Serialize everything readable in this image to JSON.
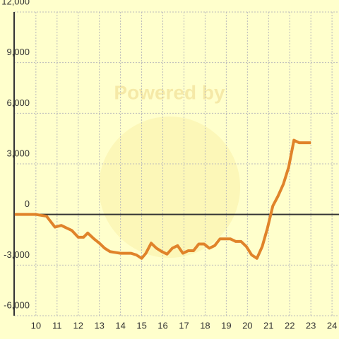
{
  "chart_data": {
    "type": "line",
    "watermark": "Powered by",
    "x": [
      9.0,
      10,
      10.5,
      10.9,
      11.2,
      11.45,
      11.7,
      12.0,
      12.25,
      12.45,
      12.75,
      13.0,
      13.25,
      13.5,
      13.75,
      14.0,
      14.25,
      14.5,
      14.75,
      15.0,
      15.2,
      15.45,
      15.7,
      15.95,
      16.2,
      16.45,
      16.7,
      16.95,
      17.2,
      17.45,
      17.7,
      17.95,
      18.2,
      18.45,
      18.7,
      19.0,
      19.2,
      19.45,
      19.7,
      19.95,
      20.2,
      20.45,
      20.7,
      20.95,
      21.2,
      21.45,
      21.7,
      21.95,
      22.2,
      22.45,
      22.7,
      23.0
    ],
    "series": [
      {
        "color": "#e0832a",
        "values": [
          0,
          0,
          -100,
          -750,
          -650,
          -800,
          -950,
          -1350,
          -1350,
          -1100,
          -1450,
          -1700,
          -2000,
          -2200,
          -2250,
          -2300,
          -2300,
          -2300,
          -2400,
          -2600,
          -2300,
          -1700,
          -2000,
          -2200,
          -2350,
          -2000,
          -1850,
          -2300,
          -2150,
          -2150,
          -1750,
          -1750,
          -2000,
          -1850,
          -1450,
          -1450,
          -1450,
          -1600,
          -1600,
          -1900,
          -2400,
          -2600,
          -1900,
          -800,
          500,
          1100,
          1800,
          2800,
          4400,
          4250,
          4250,
          4250
        ]
      }
    ],
    "xlim": [
      8.97,
      24.33
    ],
    "xticks": [
      10,
      11,
      12,
      13,
      14,
      15,
      16,
      17,
      18,
      19,
      20,
      21,
      22,
      23,
      24
    ],
    "ylim": [
      -6000,
      12000
    ],
    "yticks": [
      {
        "value": -6000,
        "label": "-6,000"
      },
      {
        "value": -3000,
        "label": "-3,000"
      },
      0,
      {
        "value": 3000,
        "label": "3,000"
      },
      {
        "value": 6000,
        "label": "6,000"
      },
      {
        "value": 9000,
        "label": "9,000"
      },
      {
        "value": 12000,
        "label": "12,000"
      }
    ],
    "grid": true
  }
}
